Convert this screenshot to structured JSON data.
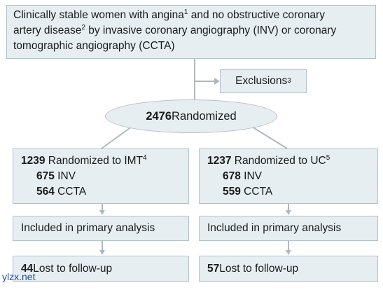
{
  "top": {
    "line1": "Clinically stable women with angina",
    "line1_sup": "1",
    "line1_rest": " and no obstructive coronary",
    "line2": "artery disease",
    "line2_sup": "2",
    "line2_rest": " by invasive coronary angiography (INV) or coronary",
    "line3": "tomographic angiography (CCTA)"
  },
  "exclusions": {
    "label": "Exclusions",
    "sup": "3"
  },
  "randomized": {
    "count": "2476",
    "label": " Randomized"
  },
  "imt": {
    "count": "1239",
    "label": " Randomized to IMT",
    "sup": "4",
    "inv_count": "675",
    "inv_label": " INV",
    "ccta_count": "564",
    "ccta_label": " CCTA",
    "primary": "Included in primary analysis",
    "lost_count": "44",
    "lost_label": " Lost to follow-up"
  },
  "uc": {
    "count": "1237",
    "label": " Randomized to UC",
    "sup": "5",
    "inv_count": "678",
    "inv_label": " INV",
    "ccta_count": "559",
    "ccta_label": " CCTA",
    "primary": "Included in primary analysis",
    "lost_count": "57",
    "lost_label": " Lost to follow-up"
  },
  "watermark": "ylzx.net",
  "colors": {
    "box_fill": "#e6eef2",
    "box_border": "#b3c1c9",
    "connector": "#b0b8bd"
  }
}
